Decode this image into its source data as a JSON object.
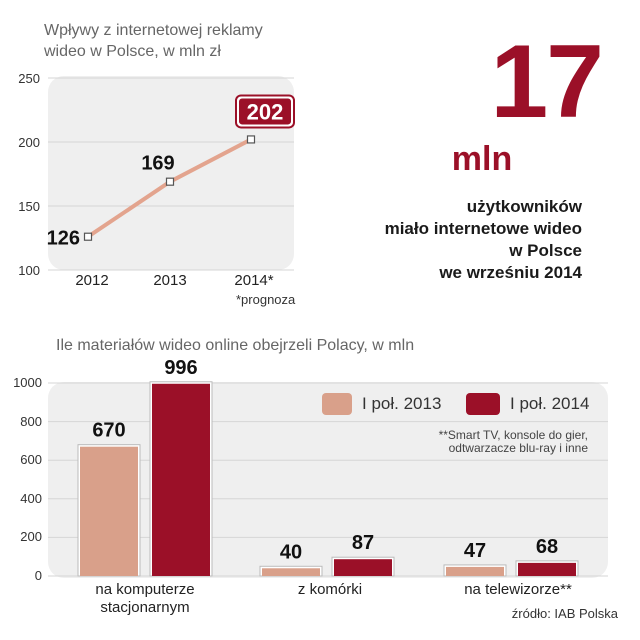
{
  "line_chart": {
    "title_line1": "Wpływy z internetowej reklamy",
    "title_line2": "wideo w Polsce, w mln zł",
    "y_ticks": [
      "250",
      "200",
      "150",
      "100"
    ],
    "footnote": "*prognoza"
  },
  "headline": {
    "number": "17",
    "unit": "mln",
    "line1": "użytkowników",
    "line2": "miało internetowe wideo",
    "line3": "w Polsce",
    "line4": "we wrześniu 2014"
  },
  "bar_chart": {
    "title": "Ile materiałów wideo online obejrzeli Polacy, w mln",
    "y_ticks": [
      "1000",
      "800",
      "600",
      "400",
      "200",
      "0"
    ],
    "legend": [
      {
        "label": "I poł. 2013",
        "color": "#d9a08a"
      },
      {
        "label": "I poł. 2014",
        "color": "#9b1028"
      }
    ],
    "note_line1": "**Smart TV, konsole do gier,",
    "note_line2": "odtwarzacze blu-ray i inne",
    "source": "źródło: IAB Polska"
  },
  "colors": {
    "accent": "#9b1028",
    "light": "#d9a08a",
    "panel": "#efefef",
    "line": "#e3a48e"
  },
  "chart_data": [
    {
      "type": "line",
      "title": "Wpływy z internetowej reklamy wideo w Polsce, w mln zł",
      "categories": [
        "2012",
        "2013",
        "2014*"
      ],
      "values": [
        126,
        169,
        202
      ],
      "value_labels": [
        "126",
        "169",
        "202"
      ],
      "ylim": [
        100,
        250
      ],
      "grid": true
    },
    {
      "type": "bar",
      "title": "Ile materiałów wideo online obejrzeli Polacy, w mln",
      "categories": [
        "na komputerze stacjonarnym",
        "z komórki",
        "na telewizorze**"
      ],
      "category_lines": [
        [
          "na komputerze",
          "stacjonarnym"
        ],
        [
          "z komórki"
        ],
        [
          "na telewizorze**"
        ]
      ],
      "series": [
        {
          "name": "I poł. 2013",
          "values": [
            670,
            40,
            47
          ],
          "labels": [
            "670",
            "40",
            "47"
          ]
        },
        {
          "name": "I poł. 2014",
          "values": [
            996,
            87,
            68
          ],
          "labels": [
            "996",
            "87",
            "68"
          ]
        }
      ],
      "ylim": [
        0,
        1000
      ],
      "grid": true,
      "legend_position": "top-right"
    }
  ]
}
